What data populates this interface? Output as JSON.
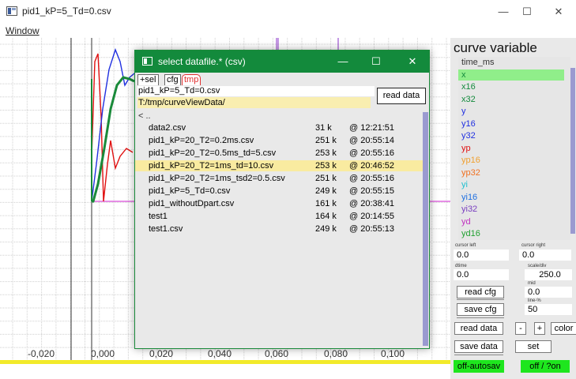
{
  "window": {
    "title": "pid1_kP=5_Td=0.csv",
    "minimize": "—",
    "maximize": "☐",
    "close": "✕"
  },
  "menubar": {
    "window_label": "Window"
  },
  "plot": {
    "x_ticks": [
      "-0,020",
      "0,000",
      "0,020",
      "0,040",
      "0,060",
      "0,080",
      "0,100"
    ],
    "colors": {
      "green": "#1a8a3a",
      "red": "#e01010",
      "blue": "#2030e0",
      "magenta": "#d020d0",
      "purple": "#8a30c8",
      "yellow": "#f2ea2a"
    }
  },
  "panel": {
    "title": "curve variable",
    "variables": [
      {
        "label": "time_ms",
        "color": "#333333",
        "selected": false
      },
      {
        "label": "x",
        "color": "#138a3c",
        "selected": true
      },
      {
        "label": "x16",
        "color": "#138a3c",
        "selected": false
      },
      {
        "label": "x32",
        "color": "#138a3c",
        "selected": false
      },
      {
        "label": "y",
        "color": "#2030e0",
        "selected": false
      },
      {
        "label": "y16",
        "color": "#2030e0",
        "selected": false
      },
      {
        "label": "y32",
        "color": "#2030e0",
        "selected": false
      },
      {
        "label": "yp",
        "color": "#e01010",
        "selected": false
      },
      {
        "label": "yp16",
        "color": "#f0a030",
        "selected": false
      },
      {
        "label": "yp32",
        "color": "#f07020",
        "selected": false
      },
      {
        "label": "yi",
        "color": "#20c0d0",
        "selected": false
      },
      {
        "label": "yi16",
        "color": "#2070e0",
        "selected": false
      },
      {
        "label": "yi32",
        "color": "#7a40c0",
        "selected": false
      },
      {
        "label": "yd",
        "color": "#c030c0",
        "selected": false
      },
      {
        "label": "yd16",
        "color": "#20a030",
        "selected": false
      }
    ],
    "cursor_left_label": "cursor left",
    "cursor_left_value": "0.0",
    "cursor_right_label": "cursor right",
    "cursor_right_value": "0.0",
    "dtime_label": "dtime",
    "dtime_value": "0.0",
    "scale_label": "scale/div",
    "scale_value": "250.0",
    "mid_label": "mid",
    "mid_value": "0.0",
    "line_label": "line-%",
    "line_value": "50",
    "read_cfg": "read cfg",
    "save_cfg": "save cfg",
    "read_data": "read data",
    "minus": "-",
    "plus": "+",
    "color": "color",
    "save_data": "save data",
    "set": "set",
    "autosave": "off-autosav",
    "on_off": "off / ?on"
  },
  "dialog": {
    "title": "select datafile.* (csv)",
    "minimize": "—",
    "maximize": "☐",
    "close": "✕",
    "tabs": [
      "+sel",
      "cfg",
      "tmp"
    ],
    "current_file": "pid1_kP=5_Td=0.csv",
    "path": "T:/tmp/curveViewData/",
    "read_data": "read data",
    "parent_dir": "<  ..",
    "files": [
      {
        "name": "data2.csv",
        "size": "31 k",
        "time": "@ 12:21:51",
        "highlight": false
      },
      {
        "name": "pid1_kP=20_T2=0.2ms.csv",
        "size": "251 k",
        "time": "@ 20:55:14",
        "highlight": false
      },
      {
        "name": "pid1_kP=20_T2=0.5ms_td=5.csv",
        "size": "253 k",
        "time": "@ 20:55:16",
        "highlight": false
      },
      {
        "name": "pid1_kP=20_T2=1ms_td=10.csv",
        "size": "253 k",
        "time": "@ 20:46:52",
        "highlight": true
      },
      {
        "name": "pid1_kP=20_T2=1ms_tsd2=0.5.csv",
        "size": "251 k",
        "time": "@ 20:55:16",
        "highlight": false
      },
      {
        "name": "pid1_kP=5_Td=0.csv",
        "size": "249 k",
        "time": "@ 20:55:15",
        "highlight": false
      },
      {
        "name": "pid1_withoutDpart.csv",
        "size": "161 k",
        "time": "@ 20:38:41",
        "highlight": false
      },
      {
        "name": "test1",
        "size": "164 k",
        "time": "@ 20:14:55",
        "highlight": false
      },
      {
        "name": "test1.csv",
        "size": "249 k",
        "time": "@ 20:55:13",
        "highlight": false
      }
    ]
  }
}
